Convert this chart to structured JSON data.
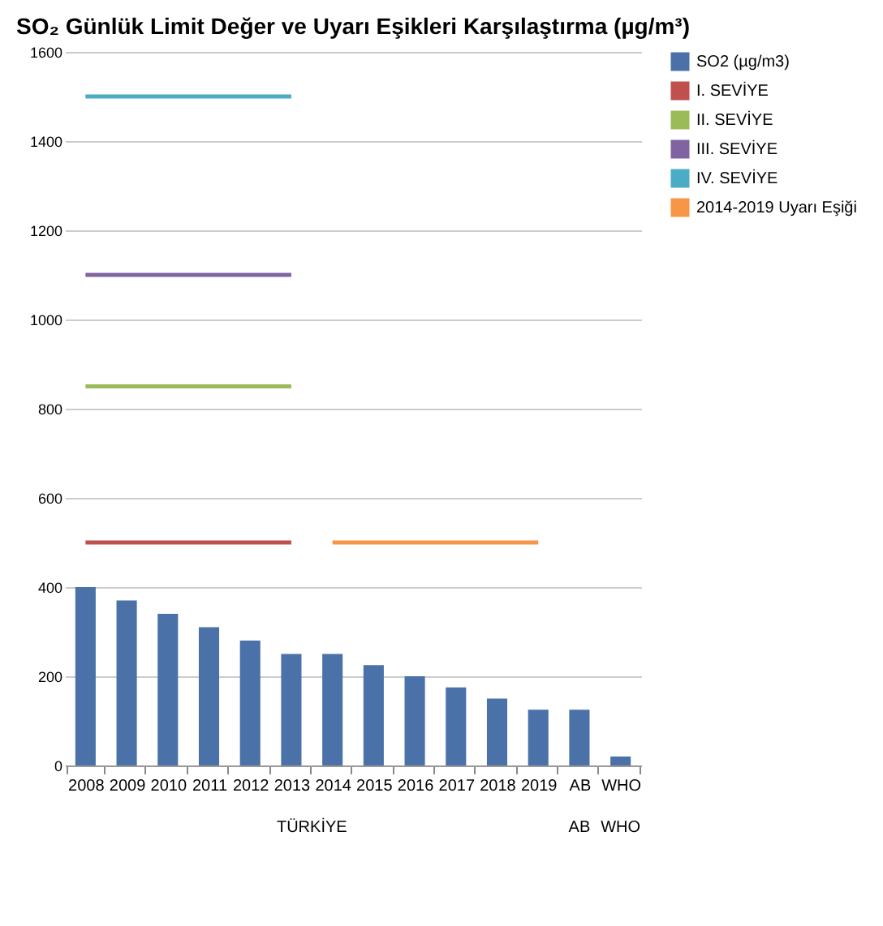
{
  "chart_data": {
    "type": "bar",
    "title": "SO₂ Günlük Limit Değer ve Uyarı Eşikleri Karşılaştırma (µg/m³)",
    "categories": [
      "2008",
      "2009",
      "2010",
      "2011",
      "2012",
      "2013",
      "2014",
      "2015",
      "2016",
      "2017",
      "2018",
      "2019",
      "AB",
      "WHO"
    ],
    "series": [
      {
        "name": "SO2 (µg/m3)",
        "color": "#4a72a8",
        "values": [
          400,
          370,
          340,
          310,
          280,
          250,
          250,
          225,
          200,
          175,
          150,
          125,
          125,
          20
        ]
      },
      {
        "name": "I. SEVİYE",
        "type": "line",
        "color": "#c0504d",
        "values": [
          500,
          500,
          500,
          500,
          500,
          500,
          null,
          null,
          null,
          null,
          null,
          null,
          null,
          null
        ]
      },
      {
        "name": "II. SEVİYE",
        "type": "line",
        "color": "#9bbb59",
        "values": [
          850,
          850,
          850,
          850,
          850,
          850,
          null,
          null,
          null,
          null,
          null,
          null,
          null,
          null
        ]
      },
      {
        "name": "III. SEVİYE",
        "type": "line",
        "color": "#8064a2",
        "values": [
          1100,
          1100,
          1100,
          1100,
          1100,
          1100,
          null,
          null,
          null,
          null,
          null,
          null,
          null,
          null
        ]
      },
      {
        "name": "IV. SEVİYE",
        "type": "line",
        "color": "#4bacc6",
        "values": [
          1500,
          1500,
          1500,
          1500,
          1500,
          1500,
          null,
          null,
          null,
          null,
          null,
          null,
          null,
          null
        ]
      },
      {
        "name": "2014-2019 Uyarı Eşiği",
        "type": "line",
        "color": "#f79646",
        "values": [
          null,
          null,
          null,
          null,
          null,
          null,
          500,
          500,
          500,
          500,
          500,
          500,
          null,
          null
        ]
      }
    ],
    "ylim": [
      0,
      1600
    ],
    "yticks": [
      0,
      200,
      400,
      600,
      800,
      1000,
      1200,
      1400,
      1600
    ],
    "grid": "y",
    "legend": "right",
    "annotations": [
      "TÜRKİYE",
      "AB",
      "WHO"
    ]
  }
}
